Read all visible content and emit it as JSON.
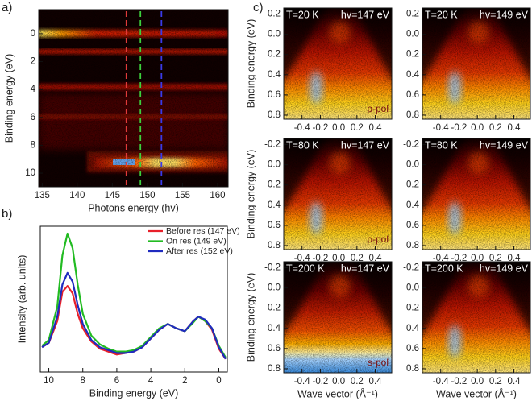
{
  "chart_data": [
    {
      "type": "heatmap",
      "panel_label": "a)",
      "x_label": "Photons energy (hv)",
      "y_label": "Binding energy  (eV)",
      "xlim": [
        134.5,
        161.5
      ],
      "xticks": [
        135,
        140,
        145,
        150,
        155,
        160
      ],
      "ylim": [
        10.98,
        -1.73
      ],
      "yticks": [
        0,
        2,
        4,
        6,
        8,
        10
      ],
      "markers": [
        {
          "x": 147,
          "color": "#e03a3a"
        },
        {
          "x": 149,
          "color": "#3ccf3c"
        },
        {
          "x": 152,
          "color": "#3a3ae8"
        }
      ]
    },
    {
      "type": "line",
      "panel_label": "b)",
      "x_label": "Binding energy (eV)",
      "y_label": "Intensity (arb. units)",
      "xlim": [
        10.5,
        -0.5
      ],
      "xticks": [
        10,
        8,
        6,
        4,
        2,
        0
      ],
      "ylim": [
        0,
        100
      ],
      "legend": "top-right",
      "x": [
        10.4,
        10,
        9.5,
        9.2,
        8.9,
        8.6,
        8.3,
        8,
        7.5,
        7,
        6.5,
        6,
        5.5,
        5,
        4.5,
        4,
        3.5,
        3,
        2.5,
        2,
        1.5,
        1.2,
        0.8,
        0.4,
        0,
        -0.4
      ],
      "series": [
        {
          "name": "Before res (147 eV)",
          "color": "#e8202a",
          "values": [
            17,
            20,
            35,
            55,
            59,
            54,
            40,
            30,
            21,
            16,
            14,
            12,
            13,
            14,
            17,
            23,
            29,
            33,
            30,
            28,
            35,
            38,
            35,
            29,
            16,
            9
          ]
        },
        {
          "name": "On res (149 eV)",
          "color": "#22bb22",
          "values": [
            18,
            22,
            45,
            80,
            95,
            85,
            60,
            40,
            25,
            19,
            16,
            14,
            14,
            15,
            18,
            24,
            30,
            33,
            30,
            28,
            34,
            38,
            35,
            30,
            18,
            10
          ]
        },
        {
          "name": "After res (152 eV)",
          "color": "#1f2bbf",
          "values": [
            17,
            20,
            38,
            60,
            68,
            62,
            46,
            33,
            22,
            17,
            15,
            13,
            13,
            14,
            17,
            23,
            29,
            33,
            30,
            28,
            35,
            38,
            36,
            30,
            17,
            9
          ]
        }
      ]
    },
    {
      "type": "arpes",
      "panel_label": "c)",
      "temperature": "T=20 K",
      "photon_energy": "hv=147 eV",
      "polarization": "p-pol",
      "y_label": "Binding energy  (eV)",
      "xlim": [
        -0.6,
        0.58
      ],
      "xticks": [
        -0.4,
        -0.2,
        {
          "value": 0,
          "label": "0.0"
        },
        0.2,
        0.4
      ],
      "ylim": [
        0.84,
        -0.26
      ],
      "yticks": [
        -0.2,
        {
          "value": 0,
          "label": "0.0"
        },
        0.2,
        0.4,
        0.6,
        0.8
      ]
    },
    {
      "type": "arpes",
      "temperature": "T=20 K",
      "photon_energy": "hv=149 eV",
      "xlim": [
        -0.6,
        0.58
      ],
      "xticks": [
        -0.4,
        -0.2,
        {
          "value": 0,
          "label": "0.0"
        },
        0.2,
        0.4
      ],
      "ylim": [
        0.84,
        -0.26
      ],
      "yticks": [
        -0.2,
        {
          "value": 0,
          "label": "0.0"
        },
        0.2,
        0.4,
        0.6,
        0.8
      ]
    },
    {
      "type": "arpes",
      "temperature": "T=80 K",
      "photon_energy": "hv=147 eV",
      "polarization": "p-pol",
      "y_label": "Binding energy  (eV)",
      "xlim": [
        -0.6,
        0.58
      ],
      "xticks": [
        -0.4,
        -0.2,
        {
          "value": 0,
          "label": "0.0"
        },
        0.2,
        0.4
      ],
      "ylim": [
        0.84,
        -0.26
      ],
      "yticks": [
        -0.2,
        {
          "value": 0,
          "label": "0.0"
        },
        0.2,
        0.4,
        0.6,
        0.8
      ]
    },
    {
      "type": "arpes",
      "temperature": "T=80 K",
      "photon_energy": "hv=149 eV",
      "xlim": [
        -0.6,
        0.58
      ],
      "xticks": [
        -0.4,
        -0.2,
        {
          "value": 0,
          "label": "0.0"
        },
        0.2,
        0.4
      ],
      "ylim": [
        0.84,
        -0.26
      ],
      "yticks": [
        -0.2,
        {
          "value": 0,
          "label": "0.0"
        },
        0.2,
        0.4,
        0.6,
        0.8
      ]
    },
    {
      "type": "arpes",
      "temperature": "T=200 K",
      "photon_energy": "hv=147 eV",
      "polarization": "s-pol",
      "y_label": "Binding energy  (eV)",
      "x_label": "Wave vector (Å⁻¹)",
      "xlim": [
        -0.6,
        0.58
      ],
      "xticks": [
        -0.4,
        -0.2,
        {
          "value": 0,
          "label": "0.0"
        },
        0.2,
        0.4
      ],
      "ylim": [
        0.84,
        -0.26
      ],
      "yticks": [
        -0.2,
        {
          "value": 0,
          "label": "0.0"
        },
        0.2,
        0.4,
        0.6,
        0.8
      ]
    },
    {
      "type": "arpes",
      "temperature": "T=200 K",
      "photon_energy": "hv=149 eV",
      "x_label": "Wave vector (Å⁻¹)",
      "xlim": [
        -0.6,
        0.58
      ],
      "xticks": [
        -0.4,
        -0.2,
        {
          "value": 0,
          "label": "0.0"
        },
        0.2,
        0.4
      ],
      "ylim": [
        0.84,
        -0.26
      ],
      "yticks": [
        -0.2,
        {
          "value": 0,
          "label": "0.0"
        },
        0.2,
        0.4,
        0.6,
        0.8
      ]
    }
  ]
}
